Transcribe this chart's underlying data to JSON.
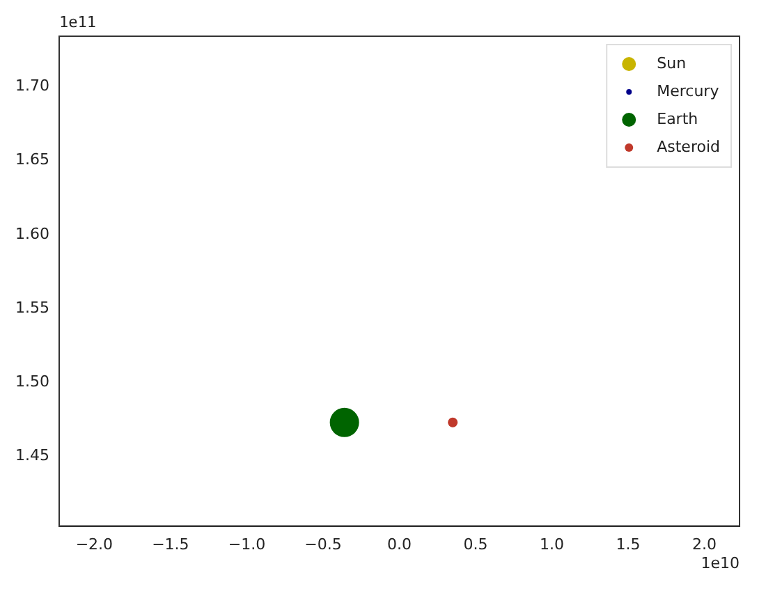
{
  "chart_data": {
    "type": "scatter",
    "series": [
      {
        "name": "Sun",
        "color": "#c8b400"
      },
      {
        "name": "Mercury",
        "color": "#00008b"
      },
      {
        "name": "Earth",
        "color": "#006400",
        "x": [
          -0.36
        ],
        "values": [
          1.473
        ]
      },
      {
        "name": "Asteroid",
        "color": "#c0392b",
        "x": [
          0.35
        ],
        "values": [
          1.473
        ]
      }
    ],
    "xlim": [
      -2.23,
      2.23
    ],
    "xticks": [
      {
        "value": -2,
        "label": "−2.0"
      },
      {
        "value": -1.5,
        "label": "−1.5"
      },
      {
        "value": -1,
        "label": "−1.0"
      },
      {
        "value": -0.5,
        "label": "−0.5"
      },
      {
        "value": 0,
        "label": "0.0"
      },
      {
        "value": 0.5,
        "label": "0.5"
      },
      {
        "value": 1,
        "label": "1.0"
      },
      {
        "value": 1.5,
        "label": "1.5"
      },
      {
        "value": 2,
        "label": "2.0"
      }
    ],
    "ylim": [
      1.403,
      1.734
    ],
    "yticks": [
      {
        "value": 1.45,
        "label": "1.45"
      },
      {
        "value": 1.5,
        "label": "1.50"
      },
      {
        "value": 1.55,
        "label": "1.55"
      },
      {
        "value": 1.6,
        "label": "1.60"
      },
      {
        "value": 1.65,
        "label": "1.65"
      },
      {
        "value": 1.7,
        "label": "1.70"
      }
    ],
    "annotations": [
      "1e11",
      "1e10"
    ],
    "grid": false,
    "legend": "top right",
    "marker": "circle"
  }
}
